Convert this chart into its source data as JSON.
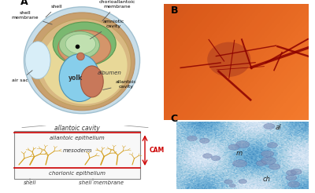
{
  "panel_A_label": "A",
  "panel_B_label": "B",
  "panel_C_label": "C",
  "egg_labels": {
    "shell": "shell",
    "shell_membrane": "shell\nmembrane",
    "chorioallantoic_membrane": "chorioallantoic\nmembrane",
    "amniotic_cavity": "amniotic\ncavity",
    "albumen": "albumen",
    "yolk": "yolk",
    "air_sac": "air sac",
    "allantoic_cavity_egg": "allantoic\ncavity"
  },
  "cam_labels": {
    "allantoic_cavity": "allantoic cavity",
    "allantoic_epithelium": "allantoic epithelium",
    "mesoderm": "mesoderm",
    "chorionic_epithelium": "chorionic epithelium",
    "cam": "CAM",
    "shell": "shell",
    "shell_membrane": "shell membrane"
  },
  "histology_labels": {
    "al": "al",
    "m": "m",
    "ch": "ch"
  },
  "bg_color": "#ffffff",
  "shell_outer_color": "#c8dde8",
  "shell_outer_edge": "#a0c0d0",
  "shell_layer_color": "#c8a06e",
  "shell_layer_edge": "#b89060",
  "shell_inner_color": "#d8b882",
  "shell_inner_edge": "#c0a060",
  "albumen_color": "#e8d898",
  "air_sac_color": "#d8eef8",
  "air_sac_edge": "#a0c0d0",
  "cam_green_color": "#7ab870",
  "cam_green_edge": "#5a9850",
  "cam_orange_color": "#d4956a",
  "cam_orange_edge": "#b07550",
  "amniotic_color": "#a8d098",
  "amniotic_edge": "#70a870",
  "amniotic_inner_color": "#c0e0b0",
  "amniotic_inner_edge": "#80b880",
  "yolk_color": "#87CEEB",
  "yolk_edge": "#5090b0",
  "allantois_color": "#c8785a",
  "allantois_edge": "#a05840",
  "cam_box_color": "#f8f8f8",
  "cam_box_edge": "#888888",
  "cam_red": "#cc0000",
  "vessel_color": "#d4a020",
  "label_color": "#333333",
  "arrow_color": "#555555",
  "photo_bg": "#e07030",
  "vessel_dark": "#8B0000",
  "histology_bg": "#b8c8d8",
  "cell_face": "#8090b8",
  "cell_edge": "#5060a0"
}
